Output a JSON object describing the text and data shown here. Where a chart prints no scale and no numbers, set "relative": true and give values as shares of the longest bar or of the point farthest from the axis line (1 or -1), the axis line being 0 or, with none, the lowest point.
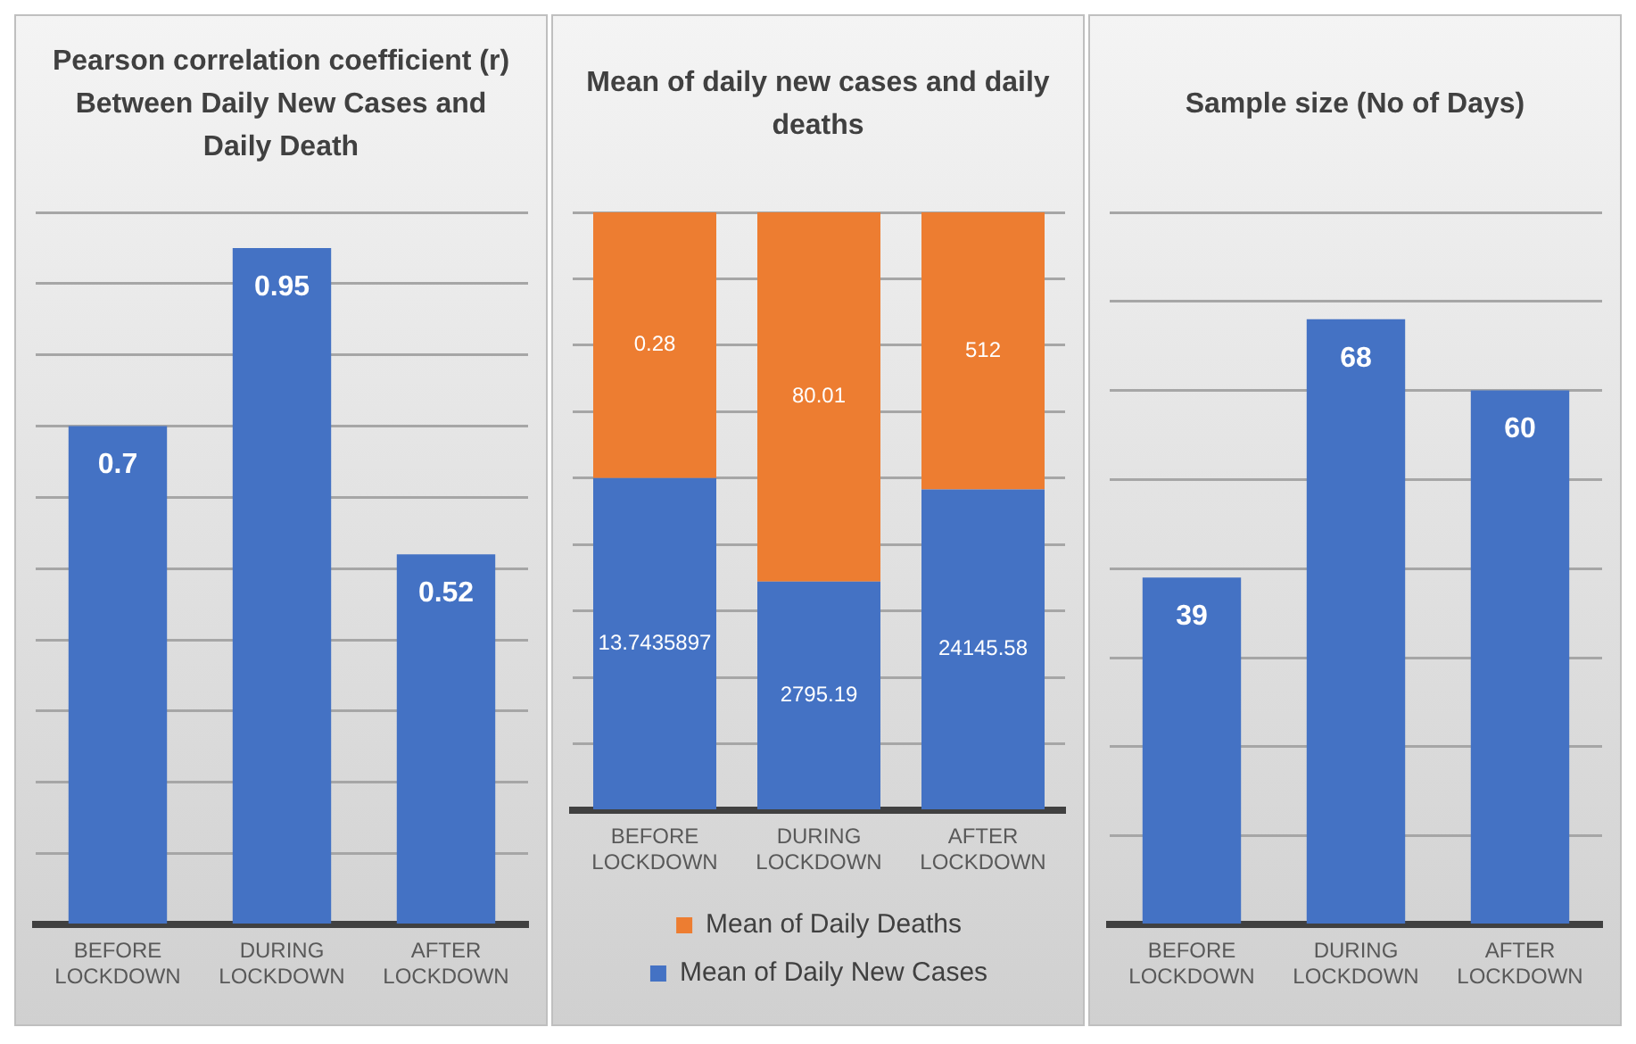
{
  "chart_data": [
    {
      "type": "bar",
      "title": "Pearson correlation coefficient (r) Between Daily New Cases and Daily Death",
      "categories": [
        "BEFORE LOCKDOWN",
        "DURING LOCKDOWN",
        "AFTER LOCKDOWN"
      ],
      "values": [
        0.7,
        0.95,
        0.52
      ],
      "color": "#4472c4",
      "ylim": [
        0,
        1
      ],
      "yticks": [
        {
          "value": 0,
          "label": null
        },
        {
          "value": 0.1,
          "label": null
        },
        {
          "value": 0.2,
          "label": null
        },
        {
          "value": 0.3,
          "label": null
        },
        {
          "value": 0.4,
          "label": null
        },
        {
          "value": 0.5,
          "label": null
        },
        {
          "value": 0.6,
          "label": null
        },
        {
          "value": 0.7,
          "label": null
        },
        {
          "value": 0.8,
          "label": null
        },
        {
          "value": 0.9,
          "label": null
        },
        {
          "value": 1,
          "label": null
        }
      ],
      "grid": "y",
      "tick_labels": "x",
      "data_labels": true
    },
    {
      "type": "bar",
      "title": "Mean of daily new cases and daily deaths",
      "categories": [
        "BEFORE LOCKDOWN",
        "DURING LOCKDOWN",
        "AFTER LOCKDOWN"
      ],
      "stacked": true,
      "relative": true,
      "grid": "y",
      "legend": "bottom",
      "series": [
        {
          "name": "Mean of Daily New Cases",
          "color": "#4472c4",
          "values": [
            0.556,
            0.383,
            0.537
          ]
        },
        {
          "name": "Mean of Daily Deaths",
          "color": "#ed7d31",
          "values": [
            0.444,
            0.617,
            0.463
          ]
        }
      ],
      "annotations": [
        "13.7435897",
        "2795.19",
        "24145.58",
        "0.28",
        "80.01",
        "512"
      ]
    },
    {
      "type": "bar",
      "title": "Sample size (No of Days)",
      "categories": [
        "BEFORE LOCKDOWN",
        "DURING LOCKDOWN",
        "AFTER LOCKDOWN"
      ],
      "values": [
        39,
        68,
        60
      ],
      "color": "#4472c4",
      "ylim": [
        0,
        80
      ],
      "yticks": [
        {
          "value": 0,
          "label": null
        },
        {
          "value": 10,
          "label": null
        },
        {
          "value": 20,
          "label": null
        },
        {
          "value": 30,
          "label": null
        },
        {
          "value": 40,
          "label": null
        },
        {
          "value": 50,
          "label": null
        },
        {
          "value": 60,
          "label": null
        },
        {
          "value": 70,
          "label": null
        },
        {
          "value": 80,
          "label": null
        }
      ],
      "grid": "y",
      "tick_labels": "x",
      "data_labels": true
    }
  ]
}
